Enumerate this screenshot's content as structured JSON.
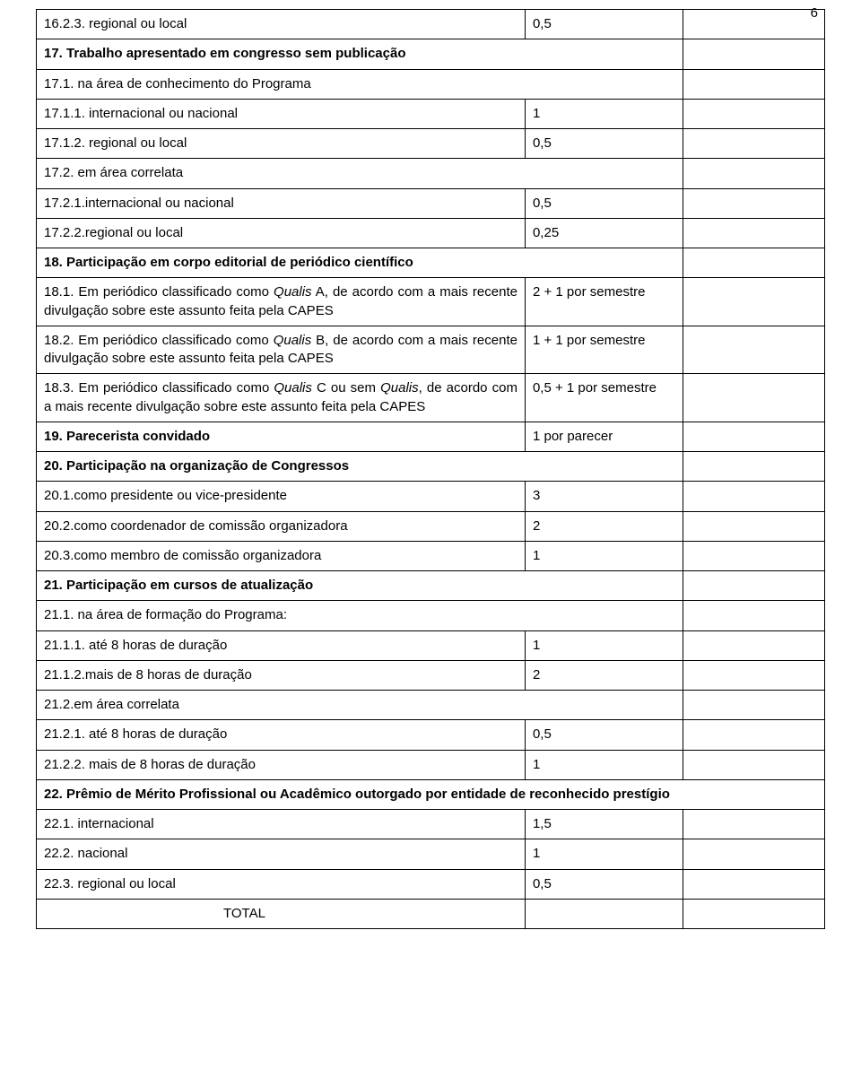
{
  "pageNumber": "6",
  "rows": [
    {
      "desc_html": "16.2.3. regional ou local",
      "val": "0,5"
    },
    {
      "desc_html": "<span class='bold'>17. Trabalho apresentado em congresso sem publicação</span>",
      "span": true
    },
    {
      "desc_html": "17.1. na área de conhecimento do Programa",
      "span": true
    },
    {
      "desc_html": "17.1.1. internacional ou nacional",
      "val": "1"
    },
    {
      "desc_html": "17.1.2. regional ou local",
      "val": "0,5"
    },
    {
      "desc_html": "17.2. em área correlata",
      "span": true
    },
    {
      "desc_html": "17.2.1.internacional ou nacional",
      "val": "0,5"
    },
    {
      "desc_html": "17.2.2.regional ou local",
      "val": "0,25"
    },
    {
      "desc_html": "<span class='bold'>18. Participação em corpo editorial de periódico científico</span>",
      "span": true
    },
    {
      "desc_html": "18.1. Em periódico classificado como <span class='italic'>Qualis</span> A, de acordo com a mais recente divulgação sobre este assunto feita pela CAPES",
      "val": "2 + 1 por semestre",
      "justify": true
    },
    {
      "desc_html": "18.2. Em periódico classificado como <span class='italic'>Qualis</span> B, de acordo com a mais recente divulgação sobre este assunto feita pela CAPES",
      "val": "1 + 1 por semestre",
      "justify": true
    },
    {
      "desc_html": "18.3. Em periódico classificado como <span class='italic'>Qualis</span> C ou sem <span class='italic'>Qualis</span>, de acordo com a mais recente divulgação sobre este assunto feita pela CAPES",
      "val": "0,5 + 1 por semestre",
      "justify": true
    },
    {
      "desc_html": "<span class='bold'>19. Parecerista convidado</span>",
      "val": "1 por parecer"
    },
    {
      "desc_html": "<span class='bold'>20. Participação na organização de Congressos</span>",
      "span": true
    },
    {
      "desc_html": "20.1.como presidente ou vice-presidente",
      "val": "3"
    },
    {
      "desc_html": "20.2.como coordenador de comissão organizadora",
      "val": "2"
    },
    {
      "desc_html": "20.3.como membro de comissão organizadora",
      "val": "1"
    },
    {
      "desc_html": "<span class='bold'>21. Participação em cursos de atualização</span>",
      "span": true
    },
    {
      "desc_html": "21.1. na área de formação do Programa:",
      "span": true
    },
    {
      "desc_html": "21.1.1. até 8 horas de duração",
      "val": "1"
    },
    {
      "desc_html": "21.1.2.mais de 8 horas de duração",
      "val": "2"
    },
    {
      "desc_html": "21.2.em área correlata",
      "span": true
    },
    {
      "desc_html": "21.2.1. até 8 horas de duração",
      "val": "0,5"
    },
    {
      "desc_html": "21.2.2. mais de 8 horas de duração",
      "val": "1"
    },
    {
      "desc_html": "<span class='bold'>22. Prêmio de Mérito Profissional ou Acadêmico outorgado por entidade de reconhecido prestígio</span>",
      "fullspan": true,
      "justify": true
    },
    {
      "desc_html": "22.1. internacional",
      "val": "1,5"
    },
    {
      "desc_html": "22.2. nacional",
      "val": "1"
    },
    {
      "desc_html": "22.3. regional ou local",
      "val": "0,5"
    },
    {
      "desc_html": "<span class='total'>TOTAL</span>",
      "val": ""
    }
  ]
}
